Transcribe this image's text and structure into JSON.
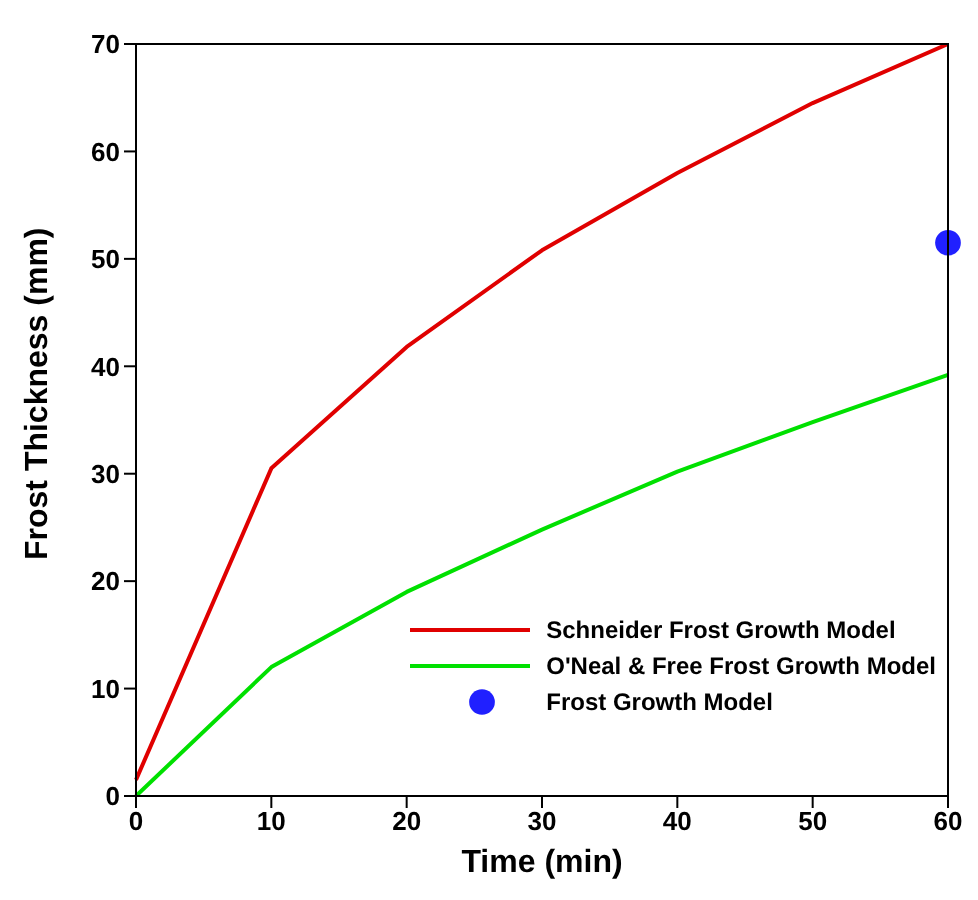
{
  "chart_data": {
    "type": "line",
    "xlabel": "Time (min)",
    "ylabel": "Frost Thickness (mm)",
    "xlim": [
      0,
      60
    ],
    "ylim": [
      0,
      70
    ],
    "xticks": [
      0,
      10,
      20,
      30,
      40,
      50,
      60
    ],
    "yticks": [
      0,
      10,
      20,
      30,
      40,
      50,
      60,
      70
    ],
    "grid": false,
    "legend": "bottom right",
    "marker": "none",
    "line_style": "solid",
    "series": [
      {
        "name": "Schneider Frost Growth Model",
        "color": "#e00000",
        "x": [
          0,
          10,
          20,
          30,
          40,
          50,
          60
        ],
        "values": [
          1.5,
          30.5,
          41.8,
          50.8,
          58,
          64.5,
          70
        ]
      },
      {
        "name": "O'Neal & Free Frost Growth Model",
        "color": "#00e000",
        "x": [
          0,
          10,
          20,
          30,
          40,
          50,
          60
        ],
        "values": [
          0,
          12,
          19,
          24.8,
          30.2,
          34.8,
          39.2
        ]
      },
      {
        "name": "Frost Growth Model",
        "type": "scatter",
        "marker": "circle",
        "color": "#2020ff",
        "x": [
          60
        ],
        "values": [
          51.5
        ]
      }
    ]
  }
}
